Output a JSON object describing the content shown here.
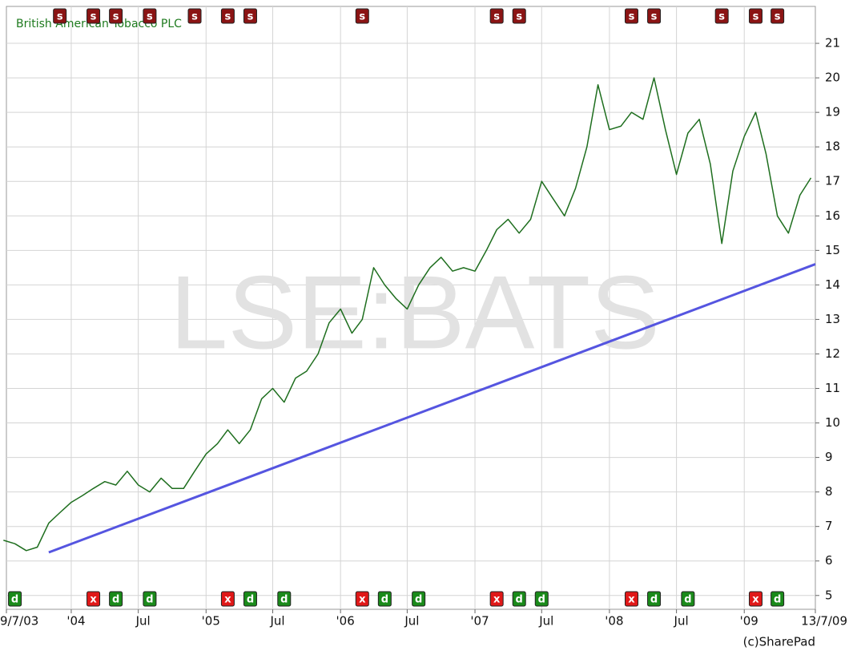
{
  "chart_data": {
    "type": "line",
    "title": "British American Tobacco PLC",
    "watermark": "LSE:BATS",
    "footer": "(c)SharePad",
    "grid": true,
    "xlim": [
      "2003-07-09",
      "2009-07-13"
    ],
    "xticks": [
      {
        "value": "2003-07-09",
        "label": "9/7/03"
      },
      {
        "value": "2004-01",
        "label": "'04"
      },
      {
        "value": "2004-07",
        "label": "Jul"
      },
      {
        "value": "2005-01",
        "label": "'05"
      },
      {
        "value": "2005-07",
        "label": "Jul"
      },
      {
        "value": "2006-01",
        "label": "'06"
      },
      {
        "value": "2006-07",
        "label": "Jul"
      },
      {
        "value": "2007-01",
        "label": "'07"
      },
      {
        "value": "2007-07",
        "label": "Jul"
      },
      {
        "value": "2008-01",
        "label": "'08"
      },
      {
        "value": "2008-07",
        "label": "Jul"
      },
      {
        "value": "2009-01",
        "label": "'09"
      },
      {
        "value": "2009-07-13",
        "label": "13/7/09"
      }
    ],
    "ylim": [
      4.6,
      22.07
    ],
    "yticks": [
      5,
      6,
      7,
      8,
      9,
      10,
      11,
      12,
      13,
      14,
      15,
      16,
      17,
      18,
      19,
      20,
      21
    ],
    "series": [
      {
        "name": "British American Tobacco PLC",
        "color": "#1e6e1e",
        "x": [
          "2003-07",
          "2003-08",
          "2003-09",
          "2003-10",
          "2003-11",
          "2003-12",
          "2004-01",
          "2004-02",
          "2004-03",
          "2004-04",
          "2004-05",
          "2004-06",
          "2004-07",
          "2004-08",
          "2004-09",
          "2004-10",
          "2004-11",
          "2004-12",
          "2005-01",
          "2005-02",
          "2005-03",
          "2005-04",
          "2005-05",
          "2005-06",
          "2005-07",
          "2005-08",
          "2005-09",
          "2005-10",
          "2005-11",
          "2005-12",
          "2006-01",
          "2006-02",
          "2006-03",
          "2006-04",
          "2006-05",
          "2006-06",
          "2006-07",
          "2006-08",
          "2006-09",
          "2006-10",
          "2006-11",
          "2006-12",
          "2007-01",
          "2007-02",
          "2007-03",
          "2007-04",
          "2007-05",
          "2007-06",
          "2007-07",
          "2007-08",
          "2007-09",
          "2007-10",
          "2007-11",
          "2007-12",
          "2008-01",
          "2008-02",
          "2008-03",
          "2008-04",
          "2008-05",
          "2008-06",
          "2008-07",
          "2008-08",
          "2008-09",
          "2008-10",
          "2008-11",
          "2008-12",
          "2009-01",
          "2009-02",
          "2009-03",
          "2009-04",
          "2009-05",
          "2009-06",
          "2009-07"
        ],
        "values": [
          6.6,
          6.5,
          6.3,
          6.4,
          7.1,
          7.4,
          7.7,
          7.9,
          8.1,
          8.3,
          8.2,
          8.6,
          8.2,
          8.0,
          8.4,
          8.1,
          8.1,
          8.6,
          9.1,
          9.4,
          9.8,
          9.4,
          9.8,
          10.7,
          11.0,
          10.6,
          11.3,
          11.5,
          12.0,
          12.9,
          13.3,
          12.6,
          13.0,
          14.5,
          14.0,
          13.6,
          13.3,
          14.0,
          14.5,
          14.8,
          14.4,
          14.5,
          14.4,
          15.0,
          15.6,
          15.9,
          15.5,
          15.9,
          17.0,
          16.5,
          16.0,
          16.8,
          18.0,
          19.8,
          18.5,
          18.6,
          19.0,
          18.8,
          20.0,
          18.5,
          17.2,
          18.4,
          18.8,
          17.5,
          15.2,
          17.3,
          18.3,
          19.0,
          17.8,
          16.0,
          15.5,
          16.6,
          17.1
        ]
      },
      {
        "name": "Trend",
        "color": "#5555e0",
        "x": [
          "2003-11",
          "2009-07-13"
        ],
        "values": [
          6.25,
          14.6
        ]
      }
    ],
    "event_groups": [
      {
        "label": "s",
        "color": "#8b1414",
        "row": "top",
        "dates": [
          "2003-12",
          "2004-03",
          "2004-05",
          "2004-08",
          "2004-12",
          "2005-03",
          "2005-05",
          "2006-03",
          "2007-03",
          "2007-05",
          "2008-03",
          "2008-05",
          "2008-11",
          "2009-02",
          "2009-04"
        ]
      },
      {
        "label": "x",
        "color": "#e01818",
        "row": "bottom",
        "dates": [
          "2004-03",
          "2005-03",
          "2006-03",
          "2007-03",
          "2008-03",
          "2009-02"
        ]
      },
      {
        "label": "d",
        "color": "#1a8a1a",
        "row": "bottom",
        "dates": [
          "2003-08",
          "2004-05",
          "2004-08",
          "2005-05",
          "2005-08",
          "2006-05",
          "2006-08",
          "2007-05",
          "2007-07",
          "2008-05",
          "2008-08",
          "2009-04"
        ]
      }
    ]
  }
}
